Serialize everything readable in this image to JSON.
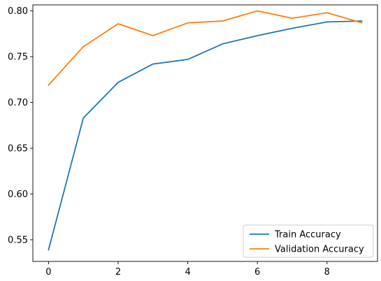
{
  "chart_data": {
    "type": "line",
    "x": [
      0,
      1,
      2,
      3,
      4,
      5,
      6,
      7,
      8,
      9
    ],
    "series": [
      {
        "name": "Train Accuracy",
        "color": "#1f77b4",
        "values": [
          0.539,
          0.683,
          0.722,
          0.742,
          0.747,
          0.764,
          0.773,
          0.781,
          0.788,
          0.789
        ]
      },
      {
        "name": "Validation Accuracy",
        "color": "#ff7f0e",
        "values": [
          0.719,
          0.761,
          0.786,
          0.773,
          0.787,
          0.789,
          0.8,
          0.792,
          0.798,
          0.787
        ]
      }
    ],
    "xlim": [
      -0.45,
      9.45
    ],
    "ylim": [
      0.5263,
      0.8066
    ],
    "x_ticks": [
      0,
      2,
      4,
      6,
      8
    ],
    "x_tick_labels": [
      "0",
      "2",
      "4",
      "6",
      "8"
    ],
    "y_ticks": [
      0.55,
      0.6,
      0.65,
      0.7,
      0.75,
      0.8
    ],
    "y_tick_labels": [
      "0.55",
      "0.60",
      "0.65",
      "0.70",
      "0.75",
      "0.80"
    ],
    "title": "",
    "xlabel": "",
    "ylabel": "",
    "grid": false,
    "legend_position": "bottom-right"
  }
}
